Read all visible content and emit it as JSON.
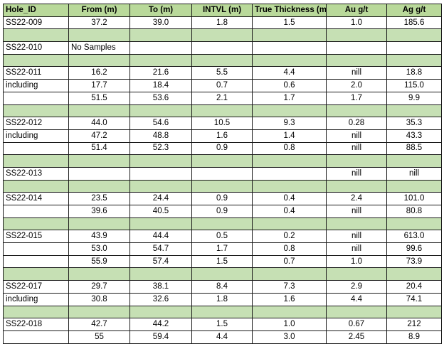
{
  "headers": [
    "Hole_ID",
    "From (m)",
    "To (m)",
    "INTVL (m)",
    "True Thickness (m)",
    "Au g/t",
    "Ag g/t"
  ],
  "rows": [
    {
      "type": "data",
      "cells": [
        "SS22-009",
        "37.2",
        "39.0",
        "1.8",
        "1.5",
        "1.0",
        "185.6"
      ]
    },
    {
      "type": "sep"
    },
    {
      "type": "data",
      "cells": [
        "SS22-010",
        "No Samples",
        "",
        "",
        "",
        "",
        ""
      ]
    },
    {
      "type": "sep"
    },
    {
      "type": "data",
      "cells": [
        "SS22-011",
        "16.2",
        "21.6",
        "5.5",
        "4.4",
        "nill",
        "18.8"
      ]
    },
    {
      "type": "data",
      "cells": [
        "including",
        "17.7",
        "18.4",
        "0.7",
        "0.6",
        "2.0",
        "115.0"
      ]
    },
    {
      "type": "data",
      "cells": [
        "",
        "51.5",
        "53.6",
        "2.1",
        "1.7",
        "1.7",
        "9.9"
      ]
    },
    {
      "type": "sep"
    },
    {
      "type": "data",
      "cells": [
        "SS22-012",
        "44.0",
        "54.6",
        "10.5",
        "9.3",
        "0.28",
        "35.3"
      ]
    },
    {
      "type": "data",
      "cells": [
        "including",
        "47.2",
        "48.8",
        "1.6",
        "1.4",
        "nill",
        "43.3"
      ]
    },
    {
      "type": "data",
      "cells": [
        "",
        "51.4",
        "52.3",
        "0.9",
        "0.8",
        "nill",
        "88.5"
      ]
    },
    {
      "type": "sep"
    },
    {
      "type": "data",
      "cells": [
        "SS22-013",
        "",
        "",
        "",
        "",
        "nill",
        "nill"
      ]
    },
    {
      "type": "sep"
    },
    {
      "type": "data",
      "cells": [
        "SS22-014",
        "23.5",
        "24.4",
        "0.9",
        "0.4",
        "2.4",
        "101.0"
      ]
    },
    {
      "type": "data",
      "cells": [
        "",
        "39.6",
        "40.5",
        "0.9",
        "0.4",
        "nill",
        "80.8"
      ]
    },
    {
      "type": "sep"
    },
    {
      "type": "data",
      "cells": [
        "SS22-015",
        "43.9",
        "44.4",
        "0.5",
        "0.2",
        "nill",
        "613.0"
      ]
    },
    {
      "type": "data",
      "cells": [
        "",
        "53.0",
        "54.7",
        "1.7",
        "0.8",
        "nill",
        "99.6"
      ]
    },
    {
      "type": "data",
      "cells": [
        "",
        "55.9",
        "57.4",
        "1.5",
        "0.7",
        "1.0",
        "73.9"
      ]
    },
    {
      "type": "sep"
    },
    {
      "type": "data",
      "cells": [
        "SS22-017",
        "29.7",
        "38.1",
        "8.4",
        "7.3",
        "2.9",
        "20.4"
      ]
    },
    {
      "type": "data",
      "cells": [
        "including",
        "30.8",
        "32.6",
        "1.8",
        "1.6",
        "4.4",
        "74.1"
      ]
    },
    {
      "type": "sep"
    },
    {
      "type": "data",
      "cells": [
        "SS22-018",
        "42.7",
        "44.2",
        "1.5",
        "1.0",
        "0.67",
        "212"
      ]
    },
    {
      "type": "data",
      "cells": [
        "",
        "55",
        "59.4",
        "4.4",
        "3.0",
        "2.45",
        "8.9"
      ]
    }
  ],
  "colors": {
    "header_bg": "#b9d99a",
    "separator_bg": "#c6e0b4",
    "border": "#1a1a1a"
  }
}
